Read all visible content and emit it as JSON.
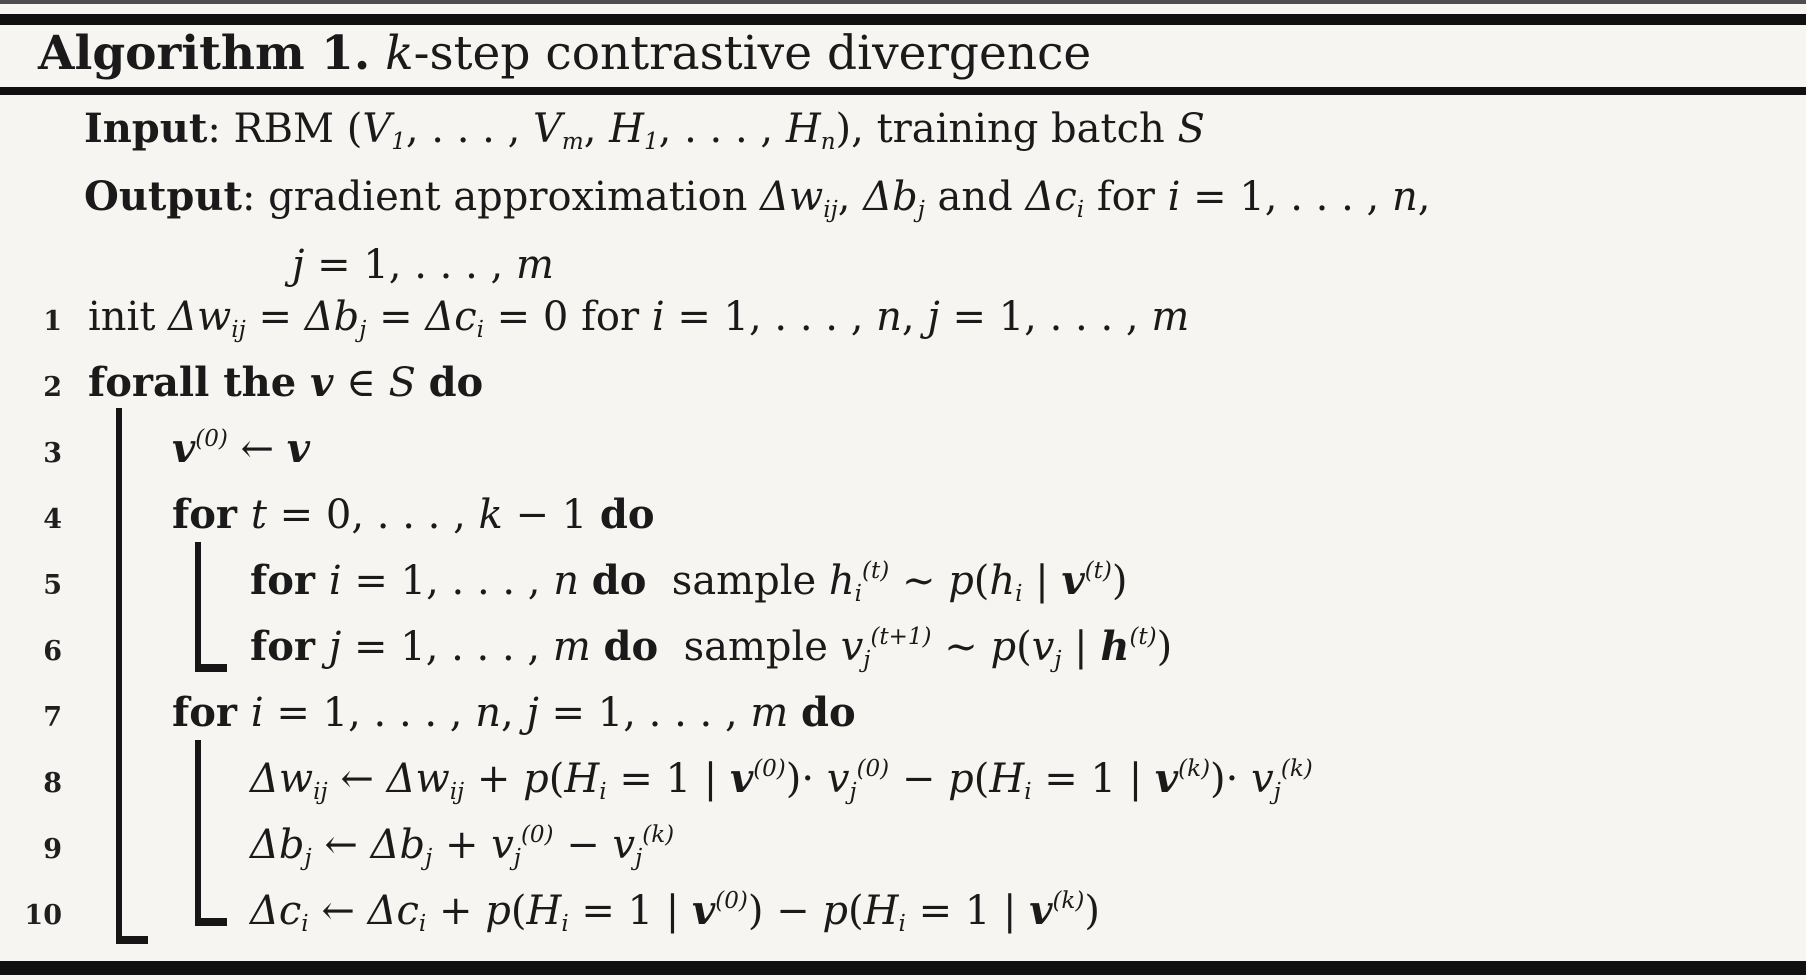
{
  "title": {
    "segments": [
      {
        "t": "Algorithm 1.",
        "s": "b"
      },
      {
        "t": " ",
        "s": "r"
      },
      {
        "t": "k",
        "s": "i"
      },
      {
        "t": "-step contrastive divergence",
        "s": "r"
      }
    ]
  },
  "header": {
    "input": {
      "segments": [
        {
          "t": "Input",
          "s": "b"
        },
        {
          "t": ": RBM (",
          "s": "r"
        },
        {
          "t": "V",
          "s": "i"
        },
        {
          "t": "1",
          "s": "sub"
        },
        {
          "t": ", . . . , ",
          "s": "r"
        },
        {
          "t": "V",
          "s": "i"
        },
        {
          "t": "m",
          "s": "sub"
        },
        {
          "t": ", ",
          "s": "r"
        },
        {
          "t": "H",
          "s": "i"
        },
        {
          "t": "1",
          "s": "sub"
        },
        {
          "t": ", . . . , ",
          "s": "r"
        },
        {
          "t": "H",
          "s": "i"
        },
        {
          "t": "n",
          "s": "sub"
        },
        {
          "t": "), training batch ",
          "s": "r"
        },
        {
          "t": "S",
          "s": "i"
        }
      ]
    },
    "output": {
      "segments": [
        {
          "t": "Output",
          "s": "b"
        },
        {
          "t": ": gradient approximation ",
          "s": "r"
        },
        {
          "t": "Δw",
          "s": "i"
        },
        {
          "t": "ij",
          "s": "sub"
        },
        {
          "t": ", ",
          "s": "r"
        },
        {
          "t": "Δb",
          "s": "i"
        },
        {
          "t": "j",
          "s": "sub"
        },
        {
          "t": " and ",
          "s": "r"
        },
        {
          "t": "Δc",
          "s": "i"
        },
        {
          "t": "i",
          "s": "sub"
        },
        {
          "t": " for ",
          "s": "r"
        },
        {
          "t": "i",
          "s": "i"
        },
        {
          "t": " = 1, . . . , ",
          "s": "r"
        },
        {
          "t": "n",
          "s": "i"
        },
        {
          "t": ",",
          "s": "r"
        }
      ]
    },
    "output_cont": {
      "segments": [
        {
          "t": "j",
          "s": "i"
        },
        {
          "t": " = 1, . . . , ",
          "s": "r"
        },
        {
          "t": "m",
          "s": "i"
        }
      ]
    }
  },
  "lines": [
    {
      "num": "1",
      "indent": 0,
      "segments": [
        {
          "t": "init ",
          "s": "r"
        },
        {
          "t": "Δw",
          "s": "i"
        },
        {
          "t": "ij",
          "s": "sub"
        },
        {
          "t": " = ",
          "s": "r"
        },
        {
          "t": "Δb",
          "s": "i"
        },
        {
          "t": "j",
          "s": "sub"
        },
        {
          "t": " = ",
          "s": "r"
        },
        {
          "t": "Δc",
          "s": "i"
        },
        {
          "t": "i",
          "s": "sub"
        },
        {
          "t": " = 0 for ",
          "s": "r"
        },
        {
          "t": "i",
          "s": "i"
        },
        {
          "t": " = 1, . . . , ",
          "s": "r"
        },
        {
          "t": "n",
          "s": "i"
        },
        {
          "t": ", ",
          "s": "r"
        },
        {
          "t": "j",
          "s": "i"
        },
        {
          "t": " = 1, . . . , ",
          "s": "r"
        },
        {
          "t": "m",
          "s": "i"
        }
      ]
    },
    {
      "num": "2",
      "indent": 0,
      "segments": [
        {
          "t": "forall the ",
          "s": "b"
        },
        {
          "t": "v",
          "s": "bi"
        },
        {
          "t": " ∈ ",
          "s": "r"
        },
        {
          "t": "S",
          "s": "i"
        },
        {
          "t": " ",
          "s": "r"
        },
        {
          "t": "do",
          "s": "b"
        }
      ]
    },
    {
      "num": "3",
      "indent": 1,
      "segments": [
        {
          "t": "v",
          "s": "bi"
        },
        {
          "t": "(0)",
          "s": "sup"
        },
        {
          "t": " ← ",
          "s": "r"
        },
        {
          "t": "v",
          "s": "bi"
        }
      ]
    },
    {
      "num": "4",
      "indent": 1,
      "segments": [
        {
          "t": "for ",
          "s": "b"
        },
        {
          "t": "t",
          "s": "i"
        },
        {
          "t": " = 0, . . . , ",
          "s": "r"
        },
        {
          "t": "k",
          "s": "i"
        },
        {
          "t": " − 1 ",
          "s": "r"
        },
        {
          "t": "do",
          "s": "b"
        }
      ]
    },
    {
      "num": "5",
      "indent": 2,
      "segments": [
        {
          "t": "for ",
          "s": "b"
        },
        {
          "t": "i",
          "s": "i"
        },
        {
          "t": " = 1, . . . , ",
          "s": "r"
        },
        {
          "t": "n",
          "s": "i"
        },
        {
          "t": " ",
          "s": "r"
        },
        {
          "t": "do",
          "s": "b"
        },
        {
          "t": "  sample ",
          "s": "r"
        },
        {
          "t": "h",
          "s": "i"
        },
        {
          "t": "i",
          "s": "sub"
        },
        {
          "t": "(t)",
          "s": "sup"
        },
        {
          "t": " ∼ ",
          "s": "r"
        },
        {
          "t": "p",
          "s": "i"
        },
        {
          "t": "(",
          "s": "r"
        },
        {
          "t": "h",
          "s": "i"
        },
        {
          "t": "i",
          "s": "sub"
        },
        {
          "t": " | ",
          "s": "r"
        },
        {
          "t": "v",
          "s": "bi"
        },
        {
          "t": "(t)",
          "s": "sup"
        },
        {
          "t": ")",
          "s": "r"
        }
      ]
    },
    {
      "num": "6",
      "indent": 2,
      "segments": [
        {
          "t": "for ",
          "s": "b"
        },
        {
          "t": "j",
          "s": "i"
        },
        {
          "t": " = 1, . . . , ",
          "s": "r"
        },
        {
          "t": "m",
          "s": "i"
        },
        {
          "t": " ",
          "s": "r"
        },
        {
          "t": "do",
          "s": "b"
        },
        {
          "t": "  sample ",
          "s": "r"
        },
        {
          "t": "v",
          "s": "i"
        },
        {
          "t": "j",
          "s": "sub"
        },
        {
          "t": "(t+1)",
          "s": "sup"
        },
        {
          "t": " ∼ ",
          "s": "r"
        },
        {
          "t": "p",
          "s": "i"
        },
        {
          "t": "(",
          "s": "r"
        },
        {
          "t": "v",
          "s": "i"
        },
        {
          "t": "j",
          "s": "sub"
        },
        {
          "t": " | ",
          "s": "r"
        },
        {
          "t": "h",
          "s": "bi"
        },
        {
          "t": "(t)",
          "s": "sup"
        },
        {
          "t": ")",
          "s": "r"
        }
      ]
    },
    {
      "num": "7",
      "indent": 1,
      "segments": [
        {
          "t": "for ",
          "s": "b"
        },
        {
          "t": "i",
          "s": "i"
        },
        {
          "t": " = 1, . . . , ",
          "s": "r"
        },
        {
          "t": "n",
          "s": "i"
        },
        {
          "t": ", ",
          "s": "r"
        },
        {
          "t": "j",
          "s": "i"
        },
        {
          "t": " = 1, . . . , ",
          "s": "r"
        },
        {
          "t": "m",
          "s": "i"
        },
        {
          "t": " ",
          "s": "r"
        },
        {
          "t": "do",
          "s": "b"
        }
      ]
    },
    {
      "num": "8",
      "indent": 2,
      "segments": [
        {
          "t": "Δw",
          "s": "i"
        },
        {
          "t": "ij",
          "s": "sub"
        },
        {
          "t": " ← ",
          "s": "r"
        },
        {
          "t": "Δw",
          "s": "i"
        },
        {
          "t": "ij",
          "s": "sub"
        },
        {
          "t": " + ",
          "s": "r"
        },
        {
          "t": "p",
          "s": "i"
        },
        {
          "t": "(",
          "s": "r"
        },
        {
          "t": "H",
          "s": "i"
        },
        {
          "t": "i",
          "s": "sub"
        },
        {
          "t": " = 1 | ",
          "s": "r"
        },
        {
          "t": "v",
          "s": "bi"
        },
        {
          "t": "(0)",
          "s": "sup"
        },
        {
          "t": ")· ",
          "s": "r"
        },
        {
          "t": "v",
          "s": "i"
        },
        {
          "t": "j",
          "s": "sub"
        },
        {
          "t": "(0)",
          "s": "sup"
        },
        {
          "t": " − ",
          "s": "r"
        },
        {
          "t": "p",
          "s": "i"
        },
        {
          "t": "(",
          "s": "r"
        },
        {
          "t": "H",
          "s": "i"
        },
        {
          "t": "i",
          "s": "sub"
        },
        {
          "t": " = 1 | ",
          "s": "r"
        },
        {
          "t": "v",
          "s": "bi"
        },
        {
          "t": "(k)",
          "s": "sup"
        },
        {
          "t": ")· ",
          "s": "r"
        },
        {
          "t": "v",
          "s": "i"
        },
        {
          "t": "j",
          "s": "sub"
        },
        {
          "t": "(k)",
          "s": "sup"
        }
      ]
    },
    {
      "num": "9",
      "indent": 2,
      "segments": [
        {
          "t": "Δb",
          "s": "i"
        },
        {
          "t": "j",
          "s": "sub"
        },
        {
          "t": " ← ",
          "s": "r"
        },
        {
          "t": "Δb",
          "s": "i"
        },
        {
          "t": "j",
          "s": "sub"
        },
        {
          "t": " + ",
          "s": "r"
        },
        {
          "t": "v",
          "s": "i"
        },
        {
          "t": "j",
          "s": "sub"
        },
        {
          "t": "(0)",
          "s": "sup"
        },
        {
          "t": " − ",
          "s": "r"
        },
        {
          "t": "v",
          "s": "i"
        },
        {
          "t": "j",
          "s": "sub"
        },
        {
          "t": "(k)",
          "s": "sup"
        }
      ]
    },
    {
      "num": "10",
      "indent": 2,
      "segments": [
        {
          "t": "Δc",
          "s": "i"
        },
        {
          "t": "i",
          "s": "sub"
        },
        {
          "t": " ← ",
          "s": "r"
        },
        {
          "t": "Δc",
          "s": "i"
        },
        {
          "t": "i",
          "s": "sub"
        },
        {
          "t": " + ",
          "s": "r"
        },
        {
          "t": "p",
          "s": "i"
        },
        {
          "t": "(",
          "s": "r"
        },
        {
          "t": "H",
          "s": "i"
        },
        {
          "t": "i",
          "s": "sub"
        },
        {
          "t": " = 1 | ",
          "s": "r"
        },
        {
          "t": "v",
          "s": "bi"
        },
        {
          "t": "(0)",
          "s": "sup"
        },
        {
          "t": ") − ",
          "s": "r"
        },
        {
          "t": "p",
          "s": "i"
        },
        {
          "t": "(",
          "s": "r"
        },
        {
          "t": "H",
          "s": "i"
        },
        {
          "t": "i",
          "s": "sub"
        },
        {
          "t": " = 1 | ",
          "s": "r"
        },
        {
          "t": "v",
          "s": "bi"
        },
        {
          "t": "(k)",
          "s": "sup"
        },
        {
          "t": ")",
          "s": "r"
        }
      ]
    }
  ]
}
